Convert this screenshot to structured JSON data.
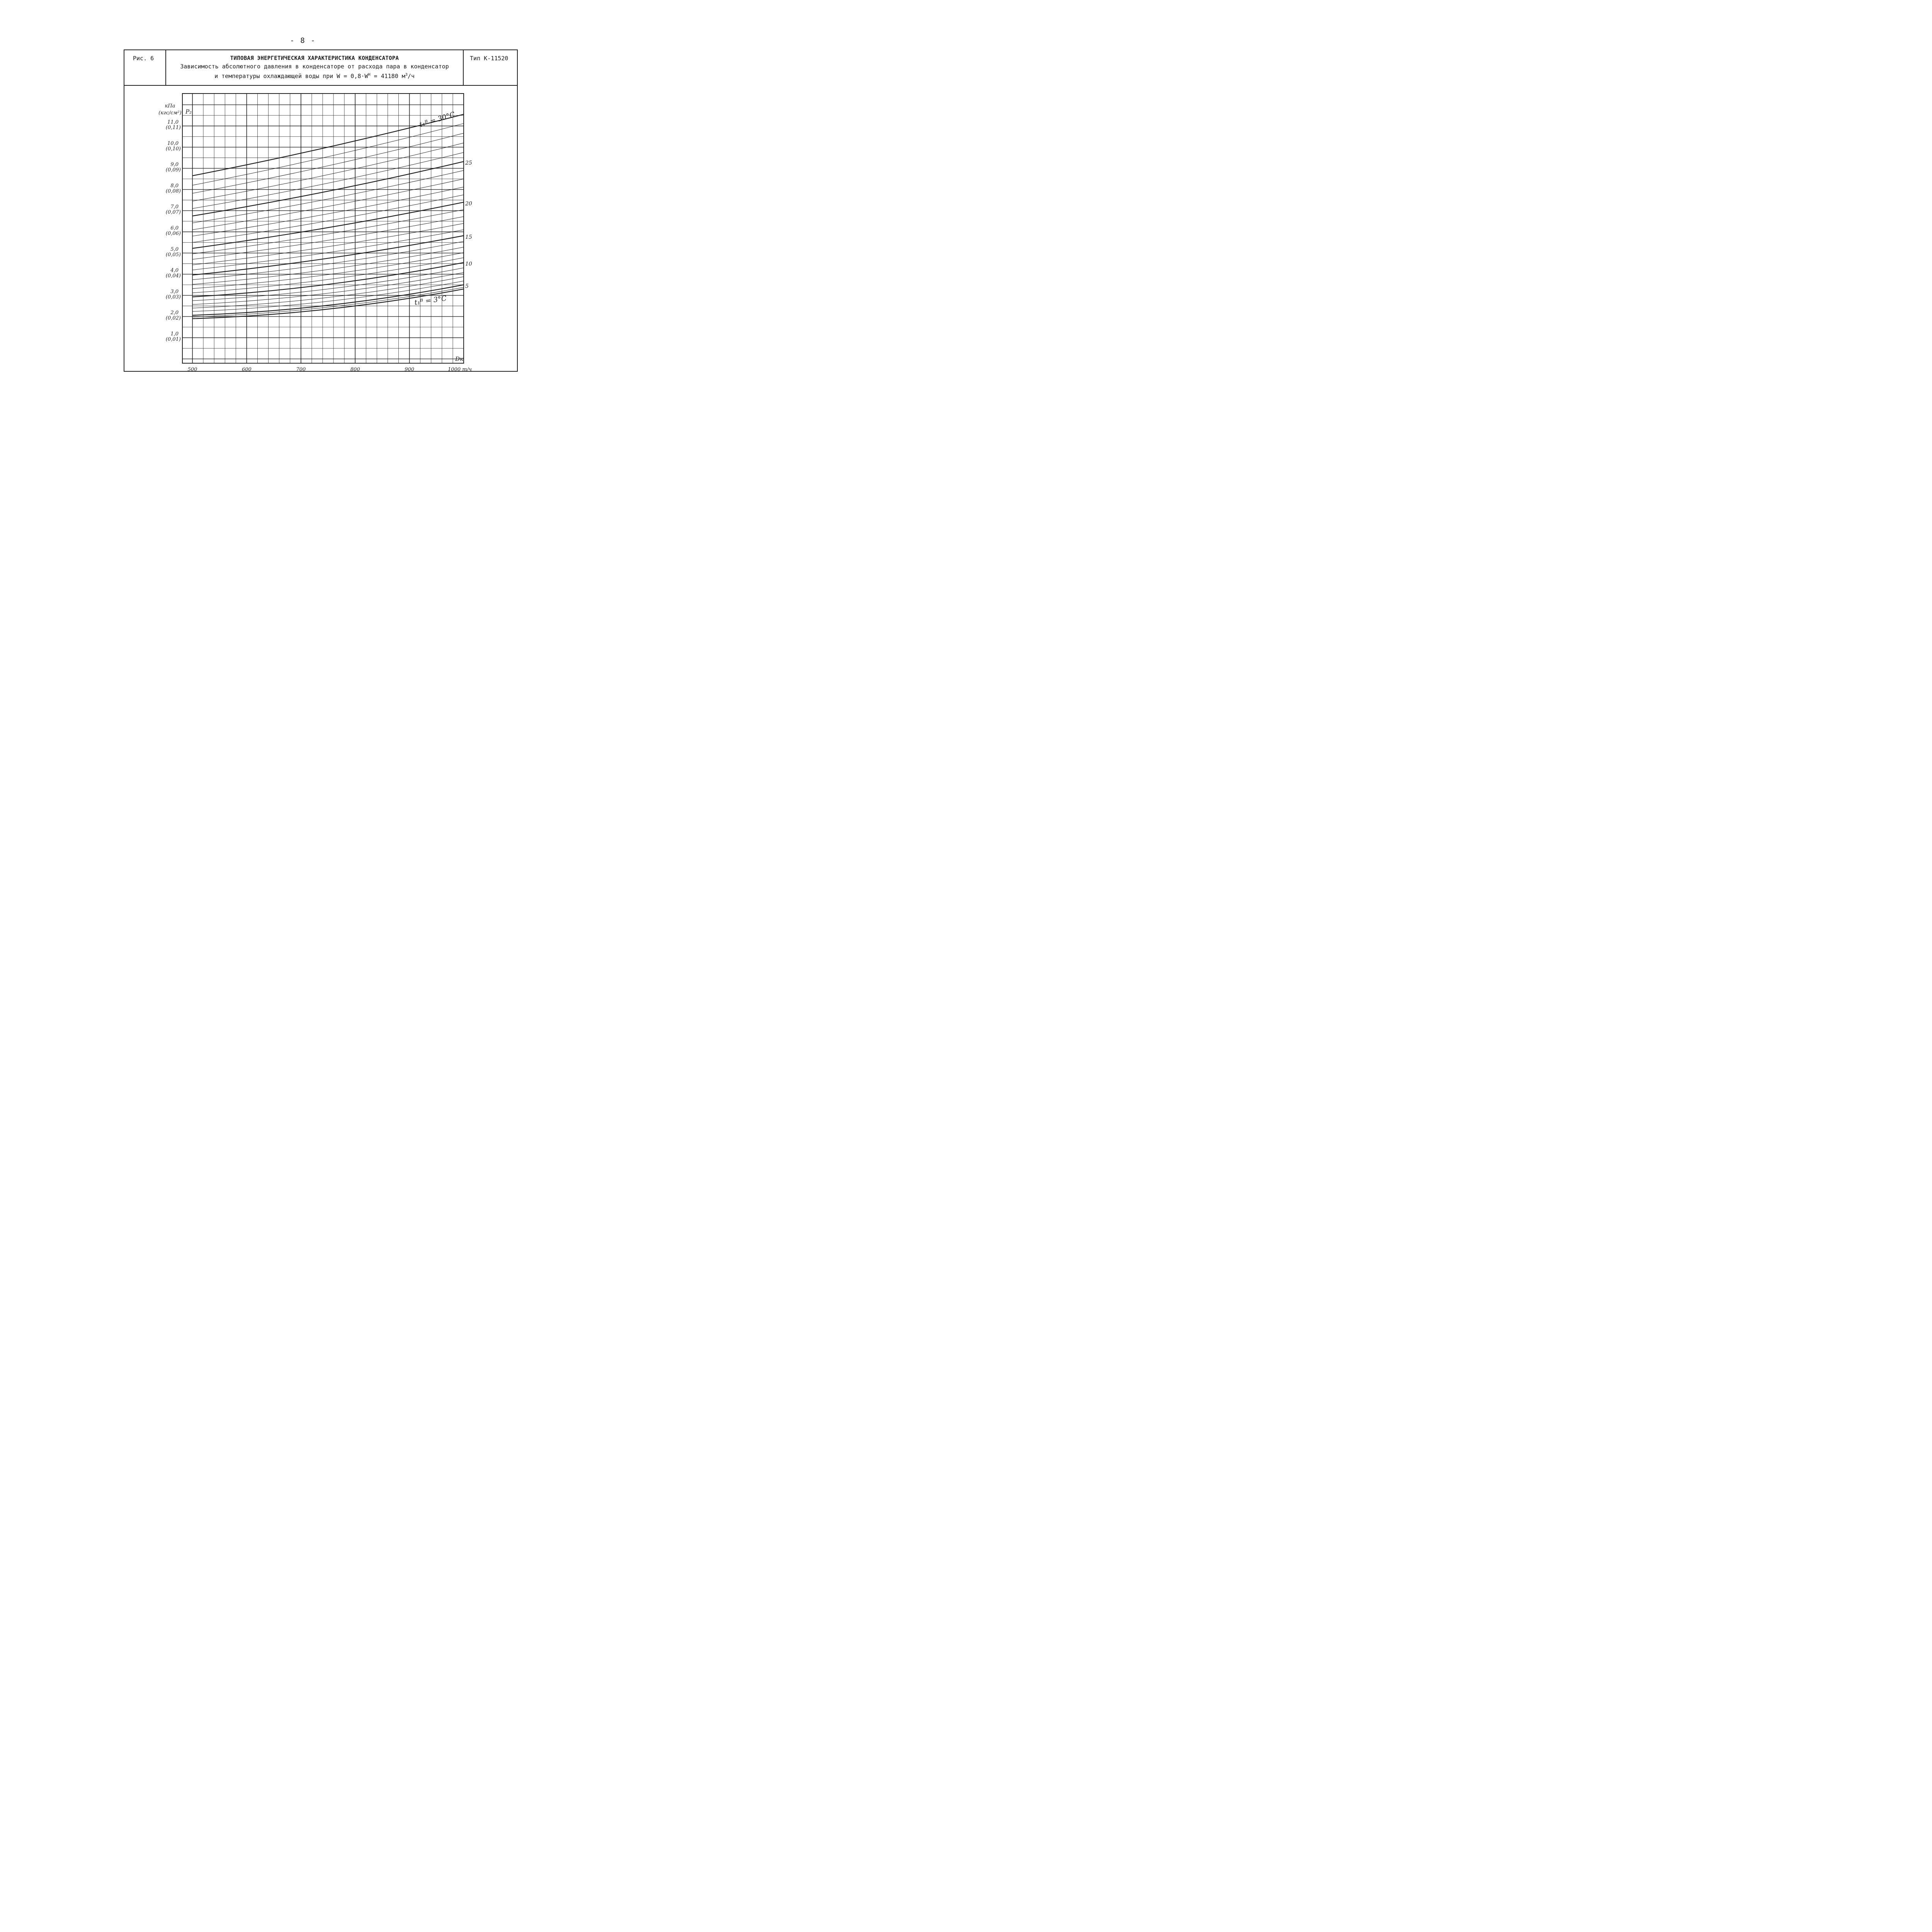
{
  "page": {
    "number": "- 8 -"
  },
  "header": {
    "figure_label": "Рис. 6",
    "title_line1": "ТИПОВАЯ ЭНЕРГЕТИЧЕСКАЯ ХАРАКТЕРИСТИКА КОНДЕНСАТОРА",
    "title_line2": "Зависимость абсолютного давления в конденсаторе от расхода пара в конденсатор",
    "title_line3_prefix": "и температуры охлаждающей воды при  W = 0,8·W",
    "title_line3_sup1": "Н",
    "title_line3_mid": " = 41180 м",
    "title_line3_sup2": "3",
    "title_line3_suffix": "/ч",
    "type_label": "Тип К-11520"
  },
  "chart_data": {
    "type": "line",
    "y_units": "кПа",
    "y_units_alt": "(кгс/см²)",
    "y_symbol": "P₂",
    "x_symbol": "Dк",
    "x_units": "т/ч",
    "xlim": [
      500,
      1000
    ],
    "ylim": [
      0,
      12
    ],
    "x_ticks": [
      {
        "value": 500,
        "label": "500"
      },
      {
        "value": 600,
        "label": "600"
      },
      {
        "value": 700,
        "label": "700"
      },
      {
        "value": 800,
        "label": "800"
      },
      {
        "value": 900,
        "label": "900"
      },
      {
        "value": 1000,
        "label": "1000 т/ч"
      }
    ],
    "y_ticks": [
      {
        "value": 11,
        "label": "11,0",
        "alt": "(0,11)"
      },
      {
        "value": 10,
        "label": "10,0",
        "alt": "(0,10)"
      },
      {
        "value": 9,
        "label": "9,0",
        "alt": "(0,09)"
      },
      {
        "value": 8,
        "label": "8,0",
        "alt": "(0,08)"
      },
      {
        "value": 7,
        "label": "7,0",
        "alt": "(0,07)"
      },
      {
        "value": 6,
        "label": "6,0",
        "alt": "(0,06)"
      },
      {
        "value": 5,
        "label": "5,0",
        "alt": "(0,05)"
      },
      {
        "value": 4,
        "label": "4,0",
        "alt": "(0,04)"
      },
      {
        "value": 3,
        "label": "3,0",
        "alt": "(0,03)"
      },
      {
        "value": 2,
        "label": "2,0",
        "alt": "(0,02)"
      },
      {
        "value": 1,
        "label": "1,0",
        "alt": "(0,01)"
      }
    ],
    "grid": true,
    "curve_labels": {
      "top": "t₁ᴮ = 30°C",
      "bottom": "t₁ᴮ = 3°C",
      "right": [
        {
          "t": 25,
          "label": "25"
        },
        {
          "t": 20,
          "label": "20"
        },
        {
          "t": 15,
          "label": "15"
        },
        {
          "t": 10,
          "label": "10"
        },
        {
          "t": 5,
          "label": "5"
        }
      ]
    },
    "x": [
      500,
      750,
      1000
    ],
    "series": [
      {
        "t": 3,
        "values": [
          1.9,
          2.35,
          3.3
        ]
      },
      {
        "t": 4,
        "values": [
          1.98,
          2.44,
          3.38
        ]
      },
      {
        "t": 5,
        "values": [
          2.06,
          2.53,
          3.5
        ]
      },
      {
        "t": 6,
        "values": [
          2.24,
          2.72,
          3.68
        ]
      },
      {
        "t": 7,
        "values": [
          2.4,
          2.9,
          3.88
        ]
      },
      {
        "t": 8,
        "values": [
          2.57,
          3.1,
          4.08
        ]
      },
      {
        "t": 9,
        "values": [
          2.75,
          3.3,
          4.3
        ]
      },
      {
        "t": 10,
        "values": [
          2.93,
          3.52,
          4.55
        ]
      },
      {
        "t": 11,
        "values": [
          3.12,
          3.75,
          4.78
        ]
      },
      {
        "t": 12,
        "values": [
          3.32,
          3.98,
          5.02
        ]
      },
      {
        "t": 13,
        "values": [
          3.52,
          4.22,
          5.28
        ]
      },
      {
        "t": 14,
        "values": [
          3.74,
          4.48,
          5.55
        ]
      },
      {
        "t": 15,
        "values": [
          3.96,
          4.75,
          5.82
        ]
      },
      {
        "t": 16,
        "values": [
          4.2,
          5.02,
          6.1
        ]
      },
      {
        "t": 17,
        "values": [
          4.44,
          5.3,
          6.4
        ]
      },
      {
        "t": 18,
        "values": [
          4.7,
          5.6,
          6.72
        ]
      },
      {
        "t": 19,
        "values": [
          4.96,
          5.9,
          7.05
        ]
      },
      {
        "t": 20,
        "values": [
          5.22,
          6.2,
          7.4
        ]
      },
      {
        "t": 21,
        "values": [
          5.5,
          6.52,
          7.75
        ]
      },
      {
        "t": 22,
        "values": [
          5.8,
          6.85,
          8.12
        ]
      },
      {
        "t": 23,
        "values": [
          6.1,
          7.2,
          8.5
        ]
      },
      {
        "t": 24,
        "values": [
          6.42,
          7.55,
          8.9
        ]
      },
      {
        "t": 25,
        "values": [
          6.75,
          7.92,
          9.32
        ]
      },
      {
        "t": 26,
        "values": [
          7.1,
          8.3,
          9.75
        ]
      },
      {
        "t": 27,
        "values": [
          7.45,
          8.7,
          10.2
        ]
      },
      {
        "t": 28,
        "values": [
          7.82,
          9.12,
          10.66
        ]
      },
      {
        "t": 29,
        "values": [
          8.2,
          9.55,
          11.12
        ]
      },
      {
        "t": 30,
        "values": [
          8.65,
          10.0,
          11.55
        ]
      }
    ]
  }
}
